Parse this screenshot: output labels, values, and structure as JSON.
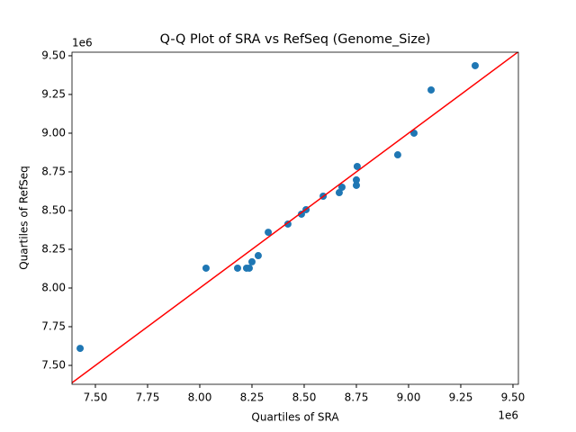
{
  "chart_data": {
    "type": "scatter",
    "title": "Q-Q Plot of SRA vs RefSeq (Genome_Size)",
    "x_label": "Quartiles of SRA",
    "y_label": "Quartiles of RefSeq",
    "x_offset_label": "1e6",
    "y_offset_label": "1e6",
    "x": [
      7.427,
      8.03,
      8.181,
      8.224,
      8.237,
      8.25,
      8.28,
      8.328,
      8.422,
      8.487,
      8.509,
      8.591,
      8.668,
      8.681,
      8.75,
      8.75,
      8.754,
      8.948,
      9.026,
      9.108,
      9.319
    ],
    "values": [
      7.61,
      8.128,
      8.128,
      8.128,
      8.128,
      8.169,
      8.209,
      8.36,
      8.413,
      8.477,
      8.506,
      8.593,
      8.616,
      8.651,
      8.663,
      8.698,
      8.785,
      8.86,
      9.0,
      9.279,
      9.436
    ],
    "color": "#1f77b4",
    "reference_line_color": "#ff0000",
    "xlim": [
      7.388,
      9.526
    ],
    "ylim": [
      7.378,
      9.523
    ],
    "xticks": [
      {
        "value": 7.5,
        "label": "7.50"
      },
      {
        "value": 7.75,
        "label": "7.75"
      },
      {
        "value": 8.0,
        "label": "8.00"
      },
      {
        "value": 8.25,
        "label": "8.25"
      },
      {
        "value": 8.5,
        "label": "8.50"
      },
      {
        "value": 8.75,
        "label": "8.75"
      },
      {
        "value": 9.0,
        "label": "9.00"
      },
      {
        "value": 9.25,
        "label": "9.25"
      },
      {
        "value": 9.5,
        "label": "9.50"
      }
    ],
    "yticks": [
      {
        "value": 7.5,
        "label": "7.50"
      },
      {
        "value": 7.75,
        "label": "7.75"
      },
      {
        "value": 8.0,
        "label": "8.00"
      },
      {
        "value": 8.25,
        "label": "8.25"
      },
      {
        "value": 8.5,
        "label": "8.50"
      },
      {
        "value": 8.75,
        "label": "8.75"
      },
      {
        "value": 9.0,
        "label": "9.00"
      },
      {
        "value": 9.25,
        "label": "9.25"
      },
      {
        "value": 9.5,
        "label": "9.50"
      }
    ]
  }
}
